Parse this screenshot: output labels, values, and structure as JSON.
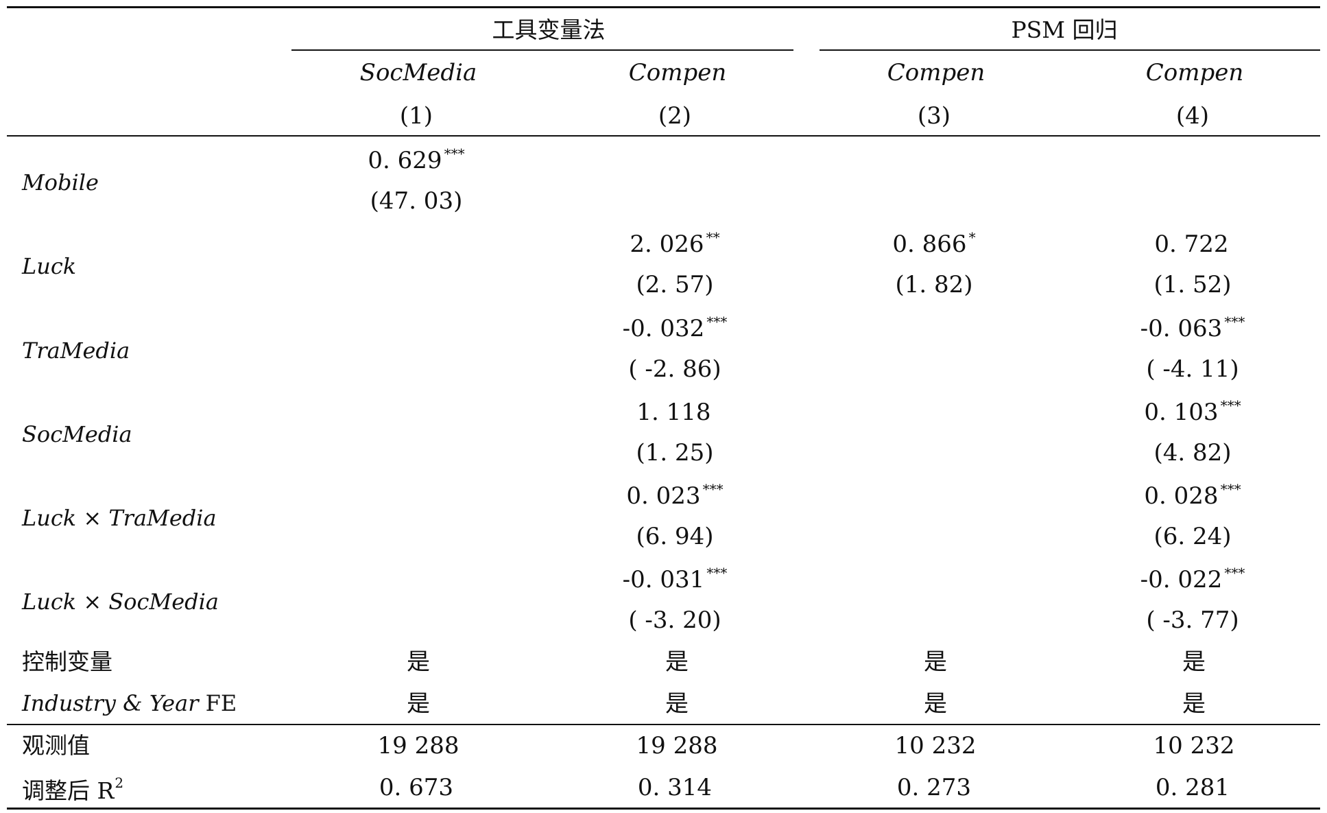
{
  "header": {
    "group_iv": "工具变量法",
    "group_psm": "PSM 回归",
    "columns": [
      {
        "var": "SocMedia",
        "num": "(1)"
      },
      {
        "var": "Compen",
        "num": "(2)"
      },
      {
        "var": "Compen",
        "num": "(3)"
      },
      {
        "var": "Compen",
        "num": "(4)"
      }
    ]
  },
  "rows": [
    {
      "label": "Mobile",
      "cells": [
        {
          "coef": "0. 629",
          "stars": "***",
          "t": "(47. 03)"
        },
        {
          "coef": "",
          "stars": "",
          "t": ""
        },
        {
          "coef": "",
          "stars": "",
          "t": ""
        },
        {
          "coef": "",
          "stars": "",
          "t": ""
        }
      ]
    },
    {
      "label": "Luck",
      "cells": [
        {
          "coef": "",
          "stars": "",
          "t": ""
        },
        {
          "coef": "2. 026",
          "stars": "**",
          "t": "(2. 57)"
        },
        {
          "coef": "0. 866",
          "stars": "*",
          "t": "(1. 82)"
        },
        {
          "coef": "0. 722",
          "stars": "",
          "t": "(1. 52)"
        }
      ]
    },
    {
      "label": "TraMedia",
      "cells": [
        {
          "coef": "",
          "stars": "",
          "t": ""
        },
        {
          "coef": "-0. 032",
          "stars": "***",
          "t": "( -2. 86)"
        },
        {
          "coef": "",
          "stars": "",
          "t": ""
        },
        {
          "coef": "-0. 063",
          "stars": "***",
          "t": "( -4. 11)"
        }
      ]
    },
    {
      "label": "SocMedia",
      "cells": [
        {
          "coef": "",
          "stars": "",
          "t": ""
        },
        {
          "coef": "1. 118",
          "stars": "",
          "t": "(1. 25)"
        },
        {
          "coef": "",
          "stars": "",
          "t": ""
        },
        {
          "coef": "0. 103",
          "stars": "***",
          "t": "(4. 82)"
        }
      ]
    },
    {
      "label": "Luck × TraMedia",
      "cells": [
        {
          "coef": "",
          "stars": "",
          "t": ""
        },
        {
          "coef": "0. 023",
          "stars": "***",
          "t": "(6. 94)"
        },
        {
          "coef": "",
          "stars": "",
          "t": ""
        },
        {
          "coef": "0. 028",
          "stars": "***",
          "t": "(6. 24)"
        }
      ]
    },
    {
      "label": "Luck × SocMedia",
      "cells": [
        {
          "coef": "",
          "stars": "",
          "t": ""
        },
        {
          "coef": "-0. 031",
          "stars": "***",
          "t": "( -3. 20)"
        },
        {
          "coef": "",
          "stars": "",
          "t": ""
        },
        {
          "coef": "-0. 022",
          "stars": "***",
          "t": "( -3. 77)"
        }
      ]
    }
  ],
  "controls": {
    "label": "控制变量",
    "values": [
      "是",
      "是",
      "是",
      "是"
    ]
  },
  "fe": {
    "label_italic": "Industry & Year",
    "label_plain": "FE",
    "values": [
      "是",
      "是",
      "是",
      "是"
    ]
  },
  "obs": {
    "label": "观测值",
    "values": [
      "19 288",
      "19 288",
      "10 232",
      "10 232"
    ]
  },
  "adjr2": {
    "label": "调整后 R",
    "label_sup": "2",
    "values": [
      "0. 673",
      "0. 314",
      "0. 273",
      "0. 281"
    ]
  }
}
